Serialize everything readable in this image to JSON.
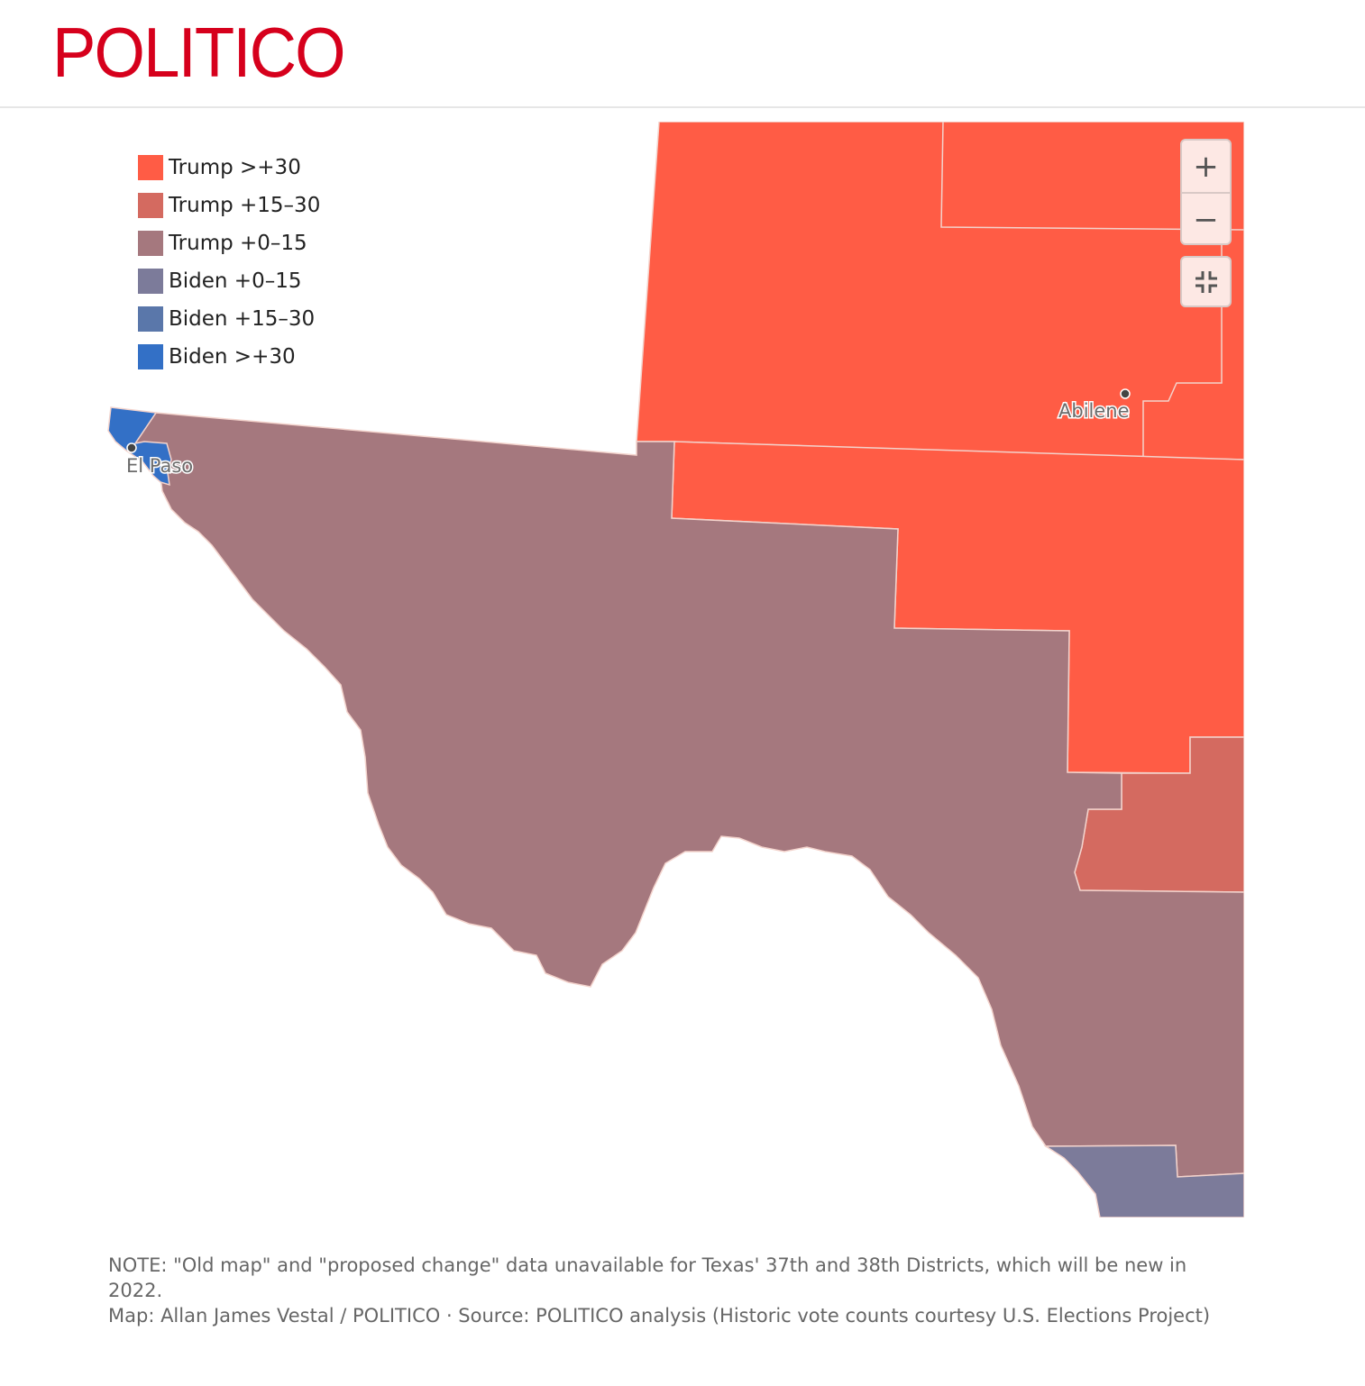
{
  "header": {
    "logo_text": "POLITICO",
    "brand_color": "#d6001c"
  },
  "legend": {
    "items": [
      {
        "label": "Trump >+30",
        "color": "#ff5c45"
      },
      {
        "label": "Trump +15–30",
        "color": "#d46a60"
      },
      {
        "label": "Trump +0–15",
        "color": "#a5787e"
      },
      {
        "label": "Biden +0–15",
        "color": "#7c7b9a"
      },
      {
        "label": "Biden +15–30",
        "color": "#5a77aa"
      },
      {
        "label": "Biden >+30",
        "color": "#3370c6"
      }
    ]
  },
  "map": {
    "cities": [
      {
        "name": "El Paso"
      },
      {
        "name": "Abilene"
      }
    ]
  },
  "controls": {
    "zoom_in": "+",
    "zoom_out": "−",
    "fit_icon": "collapse-icon"
  },
  "footer": {
    "note": "NOTE: \"Old map\" and \"proposed change\" data unavailable for Texas' 37th and 38th Districts, which will be new in 2022.",
    "credit": "Map: Allan James Vestal / POLITICO · Source: POLITICO analysis (Historic vote counts courtesy U.S. Elections Project)"
  }
}
